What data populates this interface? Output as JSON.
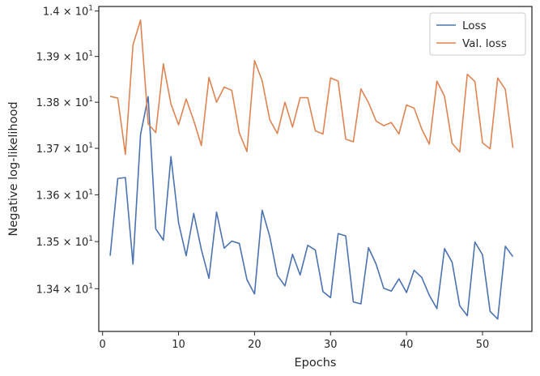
{
  "chart_data": {
    "type": "line",
    "title": "",
    "xlabel": "Epochs",
    "ylabel": "Negative log-likelihood",
    "xlim": [
      -0.5,
      56.5
    ],
    "ylim": [
      13.31,
      14.01
    ],
    "x_ticks": [
      0,
      10,
      20,
      30,
      40,
      50
    ],
    "x_tick_labels": [
      "0",
      "10",
      "20",
      "30",
      "40",
      "50"
    ],
    "y_ticks": [
      13.4,
      13.5,
      13.6,
      13.7,
      13.8,
      13.9,
      14.0
    ],
    "y_tick_labels": [
      {
        "base": "1.34 × 10",
        "exp": "1"
      },
      {
        "base": "1.35 × 10",
        "exp": "1"
      },
      {
        "base": "1.36 × 10",
        "exp": "1"
      },
      {
        "base": "1.37 × 10",
        "exp": "1"
      },
      {
        "base": "1.38 × 10",
        "exp": "1"
      },
      {
        "base": "1.39 × 10",
        "exp": "1"
      },
      {
        "base": "1.4 × 10",
        "exp": "1"
      }
    ],
    "y_scale": "log",
    "grid": false,
    "legend_position": "top-right",
    "x": [
      1,
      2,
      3,
      4,
      5,
      6,
      7,
      8,
      9,
      10,
      11,
      12,
      13,
      14,
      15,
      16,
      17,
      18,
      19,
      20,
      21,
      22,
      23,
      24,
      25,
      26,
      27,
      28,
      29,
      30,
      31,
      32,
      33,
      34,
      35,
      36,
      37,
      38,
      39,
      40,
      41,
      42,
      43,
      44,
      45,
      46,
      47,
      48,
      49,
      50,
      51,
      52,
      53,
      54
    ],
    "series": [
      {
        "name": "Loss",
        "color": "#4c72b0",
        "values": [
          13.47,
          13.635,
          13.637,
          13.452,
          13.73,
          13.812,
          13.527,
          13.503,
          13.682,
          13.54,
          13.47,
          13.56,
          13.483,
          13.422,
          13.563,
          13.486,
          13.501,
          13.496,
          13.419,
          13.389,
          13.567,
          13.511,
          13.428,
          13.406,
          13.473,
          13.429,
          13.492,
          13.482,
          13.394,
          13.381,
          13.517,
          13.512,
          13.372,
          13.368,
          13.487,
          13.452,
          13.401,
          13.395,
          13.421,
          13.392,
          13.439,
          13.424,
          13.386,
          13.358,
          13.485,
          13.456,
          13.364,
          13.343,
          13.499,
          13.472,
          13.352,
          13.336,
          13.49,
          13.468
        ]
      },
      {
        "name": "Val. loss",
        "color": "#dd8452",
        "values": [
          13.813,
          13.809,
          13.687,
          13.925,
          13.98,
          13.753,
          13.734,
          13.884,
          13.796,
          13.751,
          13.807,
          13.76,
          13.706,
          13.854,
          13.8,
          13.833,
          13.826,
          13.733,
          13.693,
          13.891,
          13.847,
          13.762,
          13.732,
          13.8,
          13.746,
          13.81,
          13.81,
          13.738,
          13.731,
          13.853,
          13.846,
          13.72,
          13.714,
          13.829,
          13.799,
          13.759,
          13.749,
          13.756,
          13.731,
          13.794,
          13.787,
          13.742,
          13.709,
          13.846,
          13.813,
          13.711,
          13.692,
          13.861,
          13.845,
          13.712,
          13.699,
          13.853,
          13.828,
          13.701
        ]
      }
    ]
  }
}
